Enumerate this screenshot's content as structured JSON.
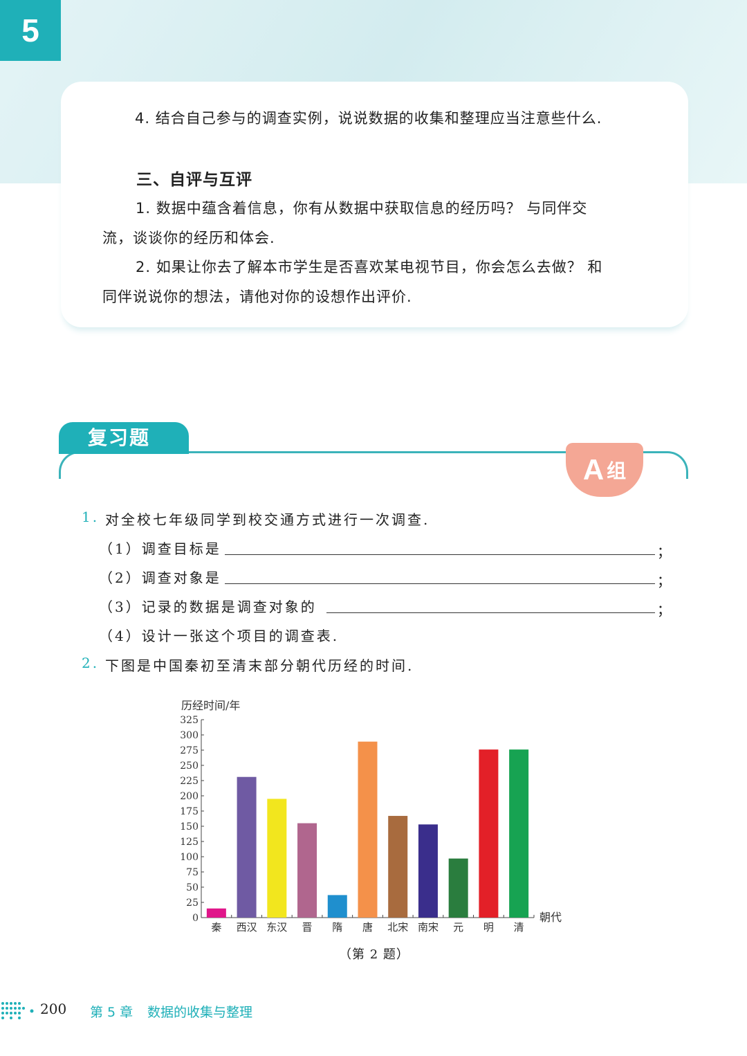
{
  "chapter_number": "5",
  "section_top": {
    "item4": "4. 结合自己参与的调查实例，说说数据的收集和整理应当注意些什么."
  },
  "section3": {
    "heading": "三、自评与互评",
    "item1_line1": "1. 数据中蕴含着信息，你有从数据中获取信息的经历吗？ 与同伴交",
    "item1_line2": "流，谈谈你的经历和体会.",
    "item2_line1": "2. 如果让你去了解本市学生是否喜欢某电视节目，你会怎么去做？ 和",
    "item2_line2": "同伴说说你的想法，请他对你的设想作出评价."
  },
  "review": {
    "title": "复习题",
    "group_letter": "A",
    "group_label": "组"
  },
  "questions": {
    "q1_num": "1.",
    "q1_text": "对全校七年级同学到校交通方式进行一次调查.",
    "q1_1": "（1）调查目标是",
    "q1_2": "（2）调查对象是",
    "q1_3": "（3）记录的数据是调查对象的",
    "q1_4": "（4）设计一张这个项目的调查表.",
    "semicolon": "；",
    "q2_num": "2.",
    "q2_text": "下图是中国秦初至清末部分朝代历经的时间.",
    "caption": "（第 2 题）"
  },
  "chart_data": {
    "type": "bar",
    "ylabel": "历经时间/年",
    "xlabel": "朝代",
    "ylim": [
      0,
      325
    ],
    "yticks": [
      0,
      25,
      50,
      75,
      100,
      125,
      150,
      175,
      200,
      225,
      250,
      275,
      300,
      325
    ],
    "grid": false,
    "categories": [
      "秦",
      "西汉",
      "东汉",
      "晋",
      "隋",
      "唐",
      "北宋",
      "南宋",
      "元",
      "明",
      "清"
    ],
    "values": [
      15,
      231,
      195,
      155,
      37,
      289,
      167,
      153,
      97,
      276,
      276
    ],
    "colors": [
      "#e0168a",
      "#6f5aa3",
      "#f2e61e",
      "#b0668e",
      "#1f8fce",
      "#f4914a",
      "#a86b3e",
      "#3a2e8c",
      "#2a7d3e",
      "#e32028",
      "#17a352"
    ]
  },
  "footer": {
    "page": "200",
    "chapter": "第 5 章",
    "chapter_title": "数据的收集与整理"
  }
}
